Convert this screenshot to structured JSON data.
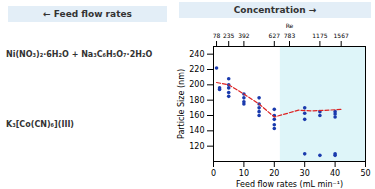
{
  "chart_data": {
    "type": "scatter",
    "xlabel": "Feed flow rates (mL min⁻¹)",
    "ylabel": "Particle Size (nm)",
    "x2label": "Re",
    "xlim": [
      0,
      50
    ],
    "ylim": [
      100,
      250
    ],
    "xticks": [
      0,
      10,
      20,
      30,
      40,
      50
    ],
    "yticks": [
      120,
      140,
      160,
      180,
      200,
      220,
      240
    ],
    "x2ticks": [
      {
        "value": 1,
        "label": "78"
      },
      {
        "value": 5,
        "label": "235"
      },
      {
        "value": 10,
        "label": "392"
      },
      {
        "value": 20,
        "label": "627"
      },
      {
        "value": 25,
        "label": "783"
      },
      {
        "value": 35,
        "label": "1175"
      },
      {
        "value": 42,
        "label": "1567"
      }
    ],
    "grid": false,
    "shaded_x": [
      22,
      50
    ],
    "series": [
      {
        "type": "scatter",
        "color": "#1a3aad",
        "x": [
          1,
          2,
          2,
          5,
          5,
          5,
          5,
          5,
          10,
          10,
          10,
          10,
          15,
          15,
          15,
          15,
          15,
          20,
          20,
          20,
          20,
          20,
          30,
          30,
          30,
          30,
          35,
          35,
          35,
          40,
          40,
          40,
          40,
          40
        ],
        "values": [
          222,
          196,
          194,
          208,
          200,
          196,
          190,
          185,
          188,
          183,
          178,
          175,
          183,
          175,
          170,
          165,
          160,
          168,
          160,
          155,
          148,
          143,
          170,
          163,
          155,
          110,
          165,
          160,
          108,
          165,
          162,
          158,
          110,
          108
        ]
      },
      {
        "type": "line",
        "line_style": "dashed",
        "color": "#dd2222",
        "x": [
          1,
          5,
          10,
          15,
          20,
          28,
          32,
          38,
          42
        ],
        "values": [
          203,
          200,
          188,
          175,
          158,
          167,
          166,
          167,
          168
        ]
      }
    ],
    "annotations": [
      {
        "text": "Feed flow rates"
      },
      {
        "text": "Concentration"
      },
      {
        "text": "Ni(NO₃)₂·6H₂O + Na₃C₆H₅O₇·2H₂O"
      },
      {
        "text": "K₃[Co(CN)₆](III)"
      }
    ]
  }
}
